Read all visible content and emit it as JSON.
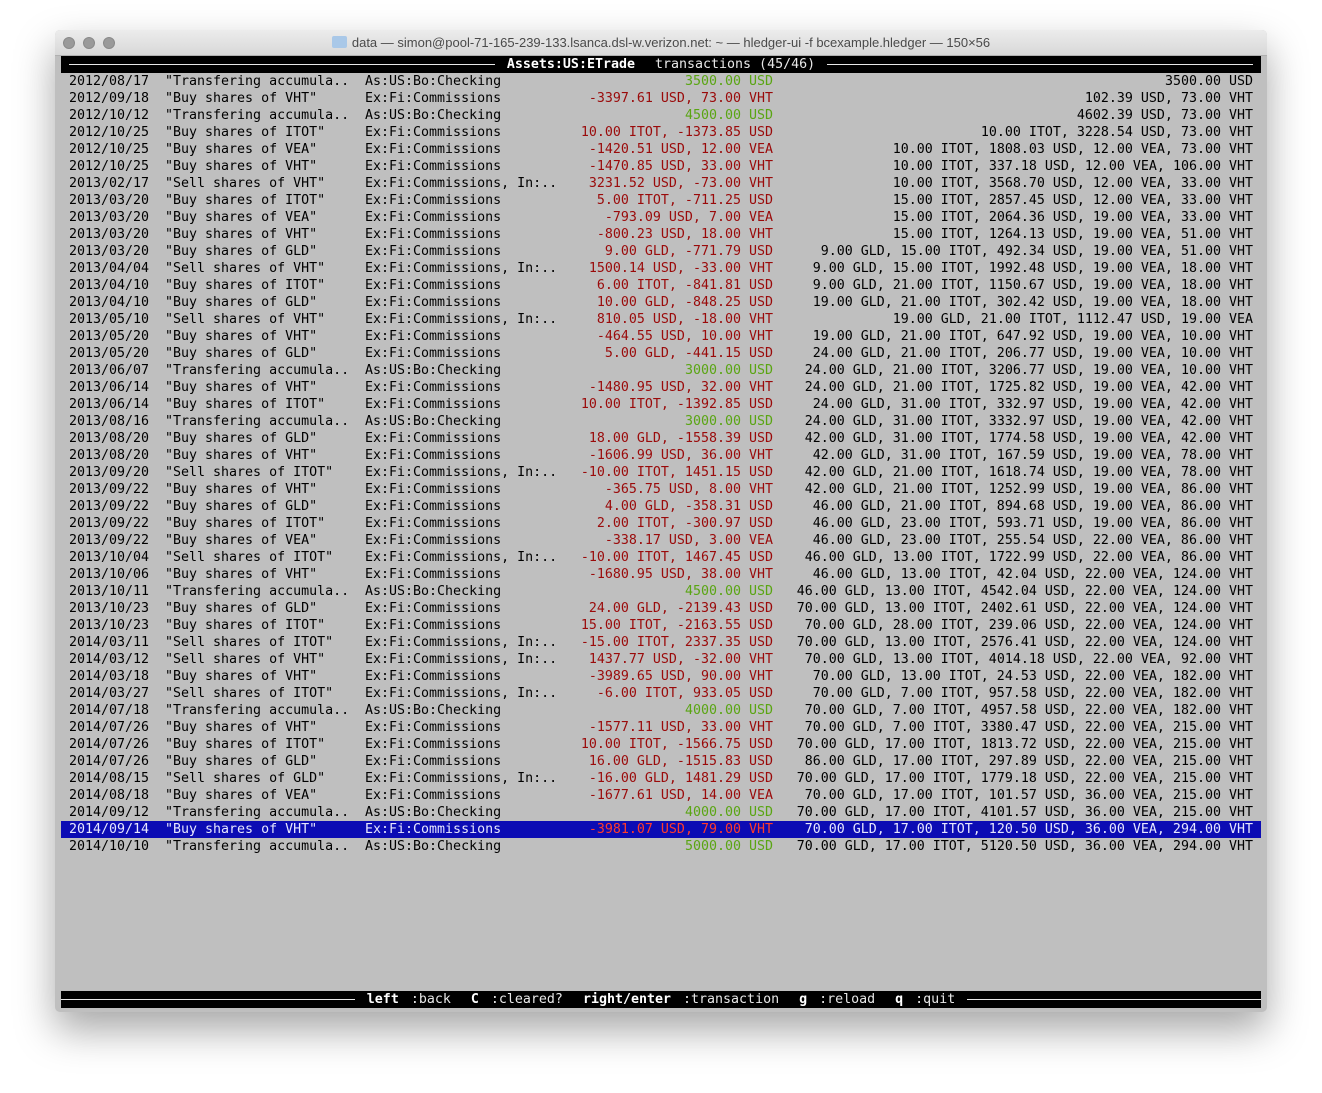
{
  "window": {
    "title": "data — simon@pool-71-165-239-133.lsanca.dsl-w.verizon.net: ~ — hledger-ui -f bcexample.hledger — 150×56"
  },
  "header": {
    "account": "Assets:US:ETrade",
    "rest": " transactions (45/46)"
  },
  "colors": {
    "positive": "#5aa513",
    "negative": "#9a0a0a",
    "selected_bg": "#0c0cb4"
  },
  "selected_index": 44,
  "rows": [
    [
      "2012/08/17",
      "\"Transfering accumula..",
      "As:US:Bo:Checking",
      "3500.00 USD",
      "3500.00 USD",
      "pos"
    ],
    [
      "2012/09/18",
      "\"Buy shares of VHT\"",
      "Ex:Fi:Commissions",
      "-3397.61 USD, 73.00 VHT",
      "102.39 USD, 73.00 VHT",
      "neg"
    ],
    [
      "2012/10/12",
      "\"Transfering accumula..",
      "As:US:Bo:Checking",
      "4500.00 USD",
      "4602.39 USD, 73.00 VHT",
      "pos"
    ],
    [
      "2012/10/25",
      "\"Buy shares of ITOT\"",
      "Ex:Fi:Commissions",
      "10.00 ITOT, -1373.85 USD",
      "10.00 ITOT, 3228.54 USD, 73.00 VHT",
      "neg"
    ],
    [
      "2012/10/25",
      "\"Buy shares of VEA\"",
      "Ex:Fi:Commissions",
      "-1420.51 USD, 12.00 VEA",
      "10.00 ITOT, 1808.03 USD, 12.00 VEA, 73.00 VHT",
      "neg"
    ],
    [
      "2012/10/25",
      "\"Buy shares of VHT\"",
      "Ex:Fi:Commissions",
      "-1470.85 USD, 33.00 VHT",
      "10.00 ITOT, 337.18 USD, 12.00 VEA, 106.00 VHT",
      "neg"
    ],
    [
      "2013/02/17",
      "\"Sell shares of VHT\"",
      "Ex:Fi:Commissions, In:..",
      "3231.52 USD, -73.00 VHT",
      "10.00 ITOT, 3568.70 USD, 12.00 VEA, 33.00 VHT",
      "neg"
    ],
    [
      "2013/03/20",
      "\"Buy shares of ITOT\"",
      "Ex:Fi:Commissions",
      "5.00 ITOT, -711.25 USD",
      "15.00 ITOT, 2857.45 USD, 12.00 VEA, 33.00 VHT",
      "neg"
    ],
    [
      "2013/03/20",
      "\"Buy shares of VEA\"",
      "Ex:Fi:Commissions",
      "-793.09 USD, 7.00 VEA",
      "15.00 ITOT, 2064.36 USD, 19.00 VEA, 33.00 VHT",
      "neg"
    ],
    [
      "2013/03/20",
      "\"Buy shares of VHT\"",
      "Ex:Fi:Commissions",
      "-800.23 USD, 18.00 VHT",
      "15.00 ITOT, 1264.13 USD, 19.00 VEA, 51.00 VHT",
      "neg"
    ],
    [
      "2013/03/20",
      "\"Buy shares of GLD\"",
      "Ex:Fi:Commissions",
      "9.00 GLD, -771.79 USD",
      "9.00 GLD, 15.00 ITOT, 492.34 USD, 19.00 VEA, 51.00 VHT",
      "neg"
    ],
    [
      "2013/04/04",
      "\"Sell shares of VHT\"",
      "Ex:Fi:Commissions, In:..",
      "1500.14 USD, -33.00 VHT",
      "9.00 GLD, 15.00 ITOT, 1992.48 USD, 19.00 VEA, 18.00 VHT",
      "neg"
    ],
    [
      "2013/04/10",
      "\"Buy shares of ITOT\"",
      "Ex:Fi:Commissions",
      "6.00 ITOT, -841.81 USD",
      "9.00 GLD, 21.00 ITOT, 1150.67 USD, 19.00 VEA, 18.00 VHT",
      "neg"
    ],
    [
      "2013/04/10",
      "\"Buy shares of GLD\"",
      "Ex:Fi:Commissions",
      "10.00 GLD, -848.25 USD",
      "19.00 GLD, 21.00 ITOT, 302.42 USD, 19.00 VEA, 18.00 VHT",
      "neg"
    ],
    [
      "2013/05/10",
      "\"Sell shares of VHT\"",
      "Ex:Fi:Commissions, In:..",
      "810.05 USD, -18.00 VHT",
      "19.00 GLD, 21.00 ITOT, 1112.47 USD, 19.00 VEA",
      "neg"
    ],
    [
      "2013/05/20",
      "\"Buy shares of VHT\"",
      "Ex:Fi:Commissions",
      "-464.55 USD, 10.00 VHT",
      "19.00 GLD, 21.00 ITOT, 647.92 USD, 19.00 VEA, 10.00 VHT",
      "neg"
    ],
    [
      "2013/05/20",
      "\"Buy shares of GLD\"",
      "Ex:Fi:Commissions",
      "5.00 GLD, -441.15 USD",
      "24.00 GLD, 21.00 ITOT, 206.77 USD, 19.00 VEA, 10.00 VHT",
      "neg"
    ],
    [
      "2013/06/07",
      "\"Transfering accumula..",
      "As:US:Bo:Checking",
      "3000.00 USD",
      "24.00 GLD, 21.00 ITOT, 3206.77 USD, 19.00 VEA, 10.00 VHT",
      "pos"
    ],
    [
      "2013/06/14",
      "\"Buy shares of VHT\"",
      "Ex:Fi:Commissions",
      "-1480.95 USD, 32.00 VHT",
      "24.00 GLD, 21.00 ITOT, 1725.82 USD, 19.00 VEA, 42.00 VHT",
      "neg"
    ],
    [
      "2013/06/14",
      "\"Buy shares of ITOT\"",
      "Ex:Fi:Commissions",
      "10.00 ITOT, -1392.85 USD",
      "24.00 GLD, 31.00 ITOT, 332.97 USD, 19.00 VEA, 42.00 VHT",
      "neg"
    ],
    [
      "2013/08/16",
      "\"Transfering accumula..",
      "As:US:Bo:Checking",
      "3000.00 USD",
      "24.00 GLD, 31.00 ITOT, 3332.97 USD, 19.00 VEA, 42.00 VHT",
      "pos"
    ],
    [
      "2013/08/20",
      "\"Buy shares of GLD\"",
      "Ex:Fi:Commissions",
      "18.00 GLD, -1558.39 USD",
      "42.00 GLD, 31.00 ITOT, 1774.58 USD, 19.00 VEA, 42.00 VHT",
      "neg"
    ],
    [
      "2013/08/20",
      "\"Buy shares of VHT\"",
      "Ex:Fi:Commissions",
      "-1606.99 USD, 36.00 VHT",
      "42.00 GLD, 31.00 ITOT, 167.59 USD, 19.00 VEA, 78.00 VHT",
      "neg"
    ],
    [
      "2013/09/20",
      "\"Sell shares of ITOT\"",
      "Ex:Fi:Commissions, In:..",
      "-10.00 ITOT, 1451.15 USD",
      "42.00 GLD, 21.00 ITOT, 1618.74 USD, 19.00 VEA, 78.00 VHT",
      "neg"
    ],
    [
      "2013/09/22",
      "\"Buy shares of VHT\"",
      "Ex:Fi:Commissions",
      "-365.75 USD, 8.00 VHT",
      "42.00 GLD, 21.00 ITOT, 1252.99 USD, 19.00 VEA, 86.00 VHT",
      "neg"
    ],
    [
      "2013/09/22",
      "\"Buy shares of GLD\"",
      "Ex:Fi:Commissions",
      "4.00 GLD, -358.31 USD",
      "46.00 GLD, 21.00 ITOT, 894.68 USD, 19.00 VEA, 86.00 VHT",
      "neg"
    ],
    [
      "2013/09/22",
      "\"Buy shares of ITOT\"",
      "Ex:Fi:Commissions",
      "2.00 ITOT, -300.97 USD",
      "46.00 GLD, 23.00 ITOT, 593.71 USD, 19.00 VEA, 86.00 VHT",
      "neg"
    ],
    [
      "2013/09/22",
      "\"Buy shares of VEA\"",
      "Ex:Fi:Commissions",
      "-338.17 USD, 3.00 VEA",
      "46.00 GLD, 23.00 ITOT, 255.54 USD, 22.00 VEA, 86.00 VHT",
      "neg"
    ],
    [
      "2013/10/04",
      "\"Sell shares of ITOT\"",
      "Ex:Fi:Commissions, In:..",
      "-10.00 ITOT, 1467.45 USD",
      "46.00 GLD, 13.00 ITOT, 1722.99 USD, 22.00 VEA, 86.00 VHT",
      "neg"
    ],
    [
      "2013/10/06",
      "\"Buy shares of VHT\"",
      "Ex:Fi:Commissions",
      "-1680.95 USD, 38.00 VHT",
      "46.00 GLD, 13.00 ITOT, 42.04 USD, 22.00 VEA, 124.00 VHT",
      "neg"
    ],
    [
      "2013/10/11",
      "\"Transfering accumula..",
      "As:US:Bo:Checking",
      "4500.00 USD",
      "46.00 GLD, 13.00 ITOT, 4542.04 USD, 22.00 VEA, 124.00 VHT",
      "pos"
    ],
    [
      "2013/10/23",
      "\"Buy shares of GLD\"",
      "Ex:Fi:Commissions",
      "24.00 GLD, -2139.43 USD",
      "70.00 GLD, 13.00 ITOT, 2402.61 USD, 22.00 VEA, 124.00 VHT",
      "neg"
    ],
    [
      "2013/10/23",
      "\"Buy shares of ITOT\"",
      "Ex:Fi:Commissions",
      "15.00 ITOT, -2163.55 USD",
      "70.00 GLD, 28.00 ITOT, 239.06 USD, 22.00 VEA, 124.00 VHT",
      "neg"
    ],
    [
      "2014/03/11",
      "\"Sell shares of ITOT\"",
      "Ex:Fi:Commissions, In:..",
      "-15.00 ITOT, 2337.35 USD",
      "70.00 GLD, 13.00 ITOT, 2576.41 USD, 22.00 VEA, 124.00 VHT",
      "neg"
    ],
    [
      "2014/03/12",
      "\"Sell shares of VHT\"",
      "Ex:Fi:Commissions, In:..",
      "1437.77 USD, -32.00 VHT",
      "70.00 GLD, 13.00 ITOT, 4014.18 USD, 22.00 VEA, 92.00 VHT",
      "neg"
    ],
    [
      "2014/03/18",
      "\"Buy shares of VHT\"",
      "Ex:Fi:Commissions",
      "-3989.65 USD, 90.00 VHT",
      "70.00 GLD, 13.00 ITOT, 24.53 USD, 22.00 VEA, 182.00 VHT",
      "neg"
    ],
    [
      "2014/03/27",
      "\"Sell shares of ITOT\"",
      "Ex:Fi:Commissions, In:..",
      "-6.00 ITOT, 933.05 USD",
      "70.00 GLD, 7.00 ITOT, 957.58 USD, 22.00 VEA, 182.00 VHT",
      "neg"
    ],
    [
      "2014/07/18",
      "\"Transfering accumula..",
      "As:US:Bo:Checking",
      "4000.00 USD",
      "70.00 GLD, 7.00 ITOT, 4957.58 USD, 22.00 VEA, 182.00 VHT",
      "pos"
    ],
    [
      "2014/07/26",
      "\"Buy shares of VHT\"",
      "Ex:Fi:Commissions",
      "-1577.11 USD, 33.00 VHT",
      "70.00 GLD, 7.00 ITOT, 3380.47 USD, 22.00 VEA, 215.00 VHT",
      "neg"
    ],
    [
      "2014/07/26",
      "\"Buy shares of ITOT\"",
      "Ex:Fi:Commissions",
      "10.00 ITOT, -1566.75 USD",
      "70.00 GLD, 17.00 ITOT, 1813.72 USD, 22.00 VEA, 215.00 VHT",
      "neg"
    ],
    [
      "2014/07/26",
      "\"Buy shares of GLD\"",
      "Ex:Fi:Commissions",
      "16.00 GLD, -1515.83 USD",
      "86.00 GLD, 17.00 ITOT, 297.89 USD, 22.00 VEA, 215.00 VHT",
      "neg"
    ],
    [
      "2014/08/15",
      "\"Sell shares of GLD\"",
      "Ex:Fi:Commissions, In:..",
      "-16.00 GLD, 1481.29 USD",
      "70.00 GLD, 17.00 ITOT, 1779.18 USD, 22.00 VEA, 215.00 VHT",
      "neg"
    ],
    [
      "2014/08/18",
      "\"Buy shares of VEA\"",
      "Ex:Fi:Commissions",
      "-1677.61 USD, 14.00 VEA",
      "70.00 GLD, 17.00 ITOT, 101.57 USD, 36.00 VEA, 215.00 VHT",
      "neg"
    ],
    [
      "2014/09/12",
      "\"Transfering accumula..",
      "As:US:Bo:Checking",
      "4000.00 USD",
      "70.00 GLD, 17.00 ITOT, 4101.57 USD, 36.00 VEA, 215.00 VHT",
      "pos"
    ],
    [
      "2014/09/14",
      "\"Buy shares of VHT\"",
      "Ex:Fi:Commissions",
      "-3981.07 USD, 79.00 VHT",
      "70.00 GLD, 17.00 ITOT, 120.50 USD, 36.00 VEA, 294.00 VHT",
      "neg"
    ],
    [
      "2014/10/10",
      "\"Transfering accumula..",
      "As:US:Bo:Checking",
      "5000.00 USD",
      "70.00 GLD, 17.00 ITOT, 5120.50 USD, 36.00 VEA, 294.00 VHT",
      "pos"
    ]
  ],
  "footer": [
    {
      "key": "left",
      "desc": ":back "
    },
    {
      "key": "C",
      "desc": ":cleared? "
    },
    {
      "key": "right/enter",
      "desc": ":transaction "
    },
    {
      "key": "g",
      "desc": ":reload "
    },
    {
      "key": "q",
      "desc": ":quit"
    }
  ]
}
